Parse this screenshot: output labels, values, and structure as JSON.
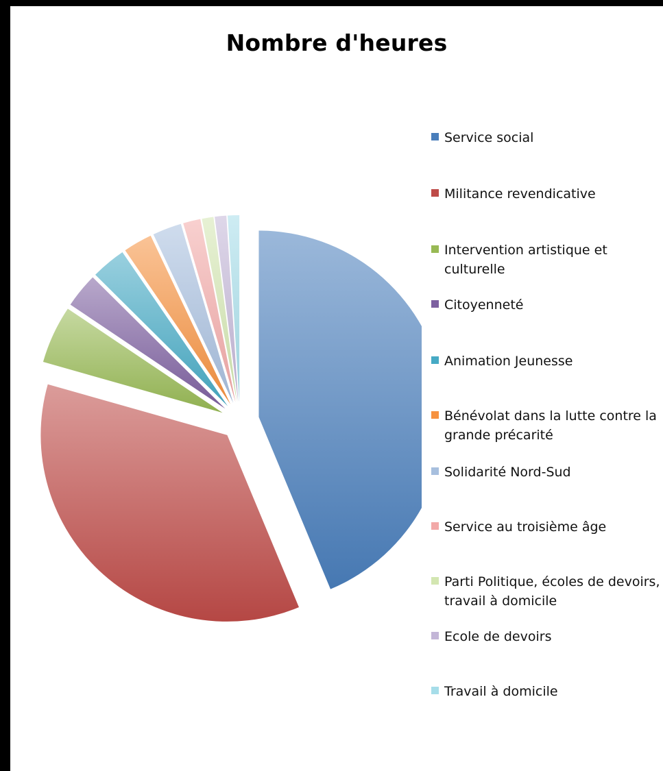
{
  "chart_data": {
    "type": "pie",
    "title": "Nombre d'heures",
    "legend_position": "right",
    "categories": [
      "Service social",
      "Militance revendicative",
      "Intervention artistique et culturelle",
      "Citoyenneté",
      "Animation Jeunesse",
      "Bénévolat dans la lutte contre la grande précarité",
      "Solidarité Nord-Sud",
      "Service au troisième âge",
      "Parti Politique, écoles de devoirs, travail à domicile",
      "Ecole de devoirs",
      "Travail à domicile"
    ],
    "values": [
      43.5,
      35.5,
      5.0,
      3.0,
      3.0,
      2.5,
      2.5,
      1.5,
      1.0,
      1.0,
      1.0
    ],
    "colors": [
      "#4a7ebb",
      "#be4b48",
      "#98b954",
      "#7d60a0",
      "#46aac5",
      "#f69240",
      "#a7bfde",
      "#f2a9a8",
      "#d3e6b1",
      "#c3b6d7",
      "#a6dde9"
    ],
    "grid": false,
    "exploded": true
  }
}
